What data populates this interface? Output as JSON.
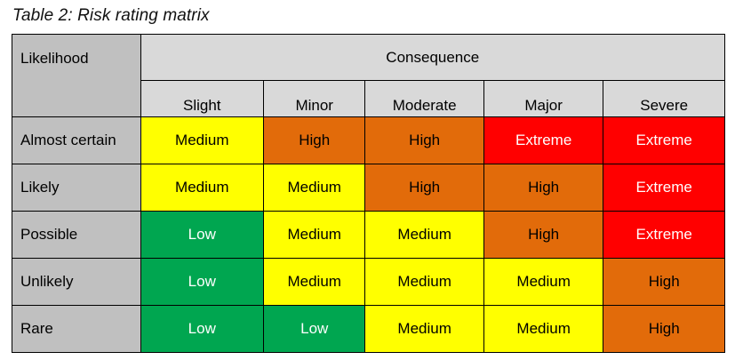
{
  "caption": "Table 2: Risk rating matrix",
  "table": {
    "corner_label": "Likelihood",
    "consequence_title": "Consequence",
    "consequence_levels": [
      "Slight",
      "Minor",
      "Moderate",
      "Major",
      "Severe"
    ],
    "rows": [
      {
        "likelihood": "Almost certain",
        "ratings": [
          "Medium",
          "High",
          "High",
          "Extreme",
          "Extreme"
        ]
      },
      {
        "likelihood": "Likely",
        "ratings": [
          "Medium",
          "Medium",
          "High",
          "High",
          "Extreme"
        ]
      },
      {
        "likelihood": "Possible",
        "ratings": [
          "Low",
          "Medium",
          "Medium",
          "High",
          "Extreme"
        ]
      },
      {
        "likelihood": "Unlikely",
        "ratings": [
          "Low",
          "Medium",
          "Medium",
          "Medium",
          "High"
        ]
      },
      {
        "likelihood": "Rare",
        "ratings": [
          "Low",
          "Low",
          "Medium",
          "Medium",
          "High"
        ]
      }
    ]
  },
  "colors": {
    "low": "#00a650",
    "medium": "#ffff00",
    "high": "#e26b0a",
    "extreme": "#ff0000",
    "header_grey": "#c0c0c0",
    "subheader_grey": "#d9d9d9"
  }
}
